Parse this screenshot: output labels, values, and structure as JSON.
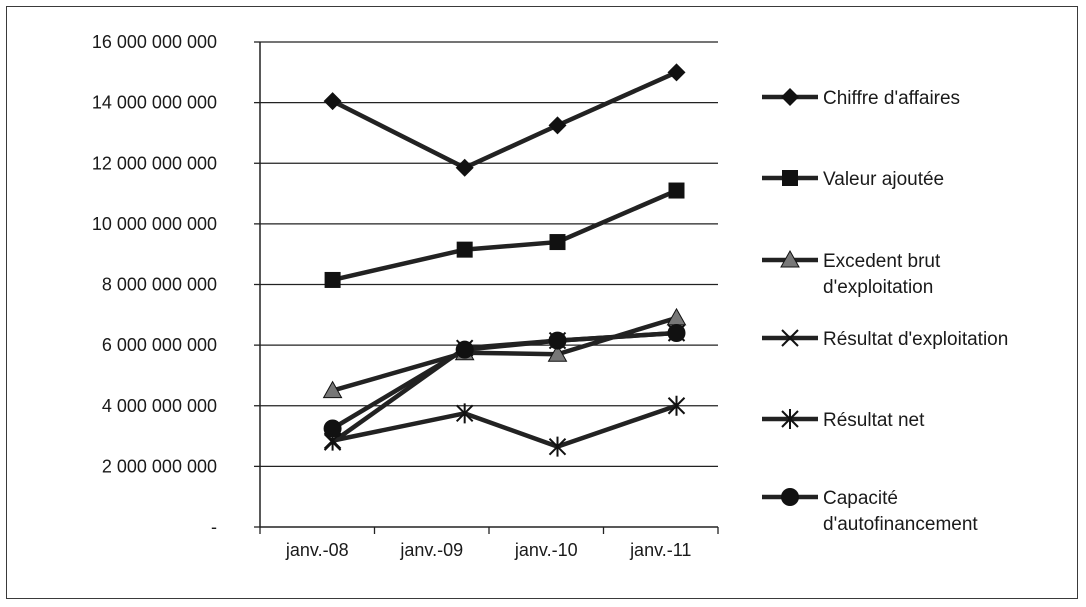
{
  "chart_data": {
    "type": "line",
    "title": "",
    "xlabel": "",
    "ylabel": "",
    "categories": [
      "janv.-08",
      "janv.-09",
      "janv.-10",
      "janv.-11"
    ],
    "x": [
      1,
      2,
      3,
      4
    ],
    "x_offsets": [
      0.11,
      0.22,
      0.0,
      0.0
    ],
    "ylim": [
      0,
      16000000000
    ],
    "y_ticks": [
      {
        "value": 0,
        "label": "-"
      },
      {
        "value": 2000000000,
        "label": "2 000 000 000"
      },
      {
        "value": 4000000000,
        "label": "4 000 000 000"
      },
      {
        "value": 6000000000,
        "label": "6 000 000 000"
      },
      {
        "value": 8000000000,
        "label": "8 000 000 000"
      },
      {
        "value": 10000000000,
        "label": "10 000 000 000"
      },
      {
        "value": 12000000000,
        "label": "12 000 000 000"
      },
      {
        "value": 14000000000,
        "label": "14 000 000 000"
      },
      {
        "value": 16000000000,
        "label": "16 000 000 000"
      }
    ],
    "grid": true,
    "legend_position": "right",
    "series": [
      {
        "name": "Chiffre d'affaires",
        "name_lines": [
          "Chiffre d'affaires"
        ],
        "marker": "diamond",
        "values": [
          14050000000,
          11850000000,
          13250000000,
          15000000000
        ]
      },
      {
        "name": "Valeur ajoutée",
        "name_lines": [
          "Valeur ajoutée"
        ],
        "marker": "square",
        "values": [
          8150000000,
          9150000000,
          9400000000,
          11100000000
        ]
      },
      {
        "name": "Excedent brut d'exploitation",
        "name_lines": [
          "Excedent brut",
          "d'exploitation"
        ],
        "marker": "triangle",
        "values": [
          4500000000,
          5750000000,
          5700000000,
          6900000000
        ]
      },
      {
        "name": "Résultat d'exploitation",
        "name_lines": [
          "Résultat d'exploitation"
        ],
        "marker": "x",
        "values": [
          2800000000,
          5900000000,
          6150000000,
          6400000000
        ]
      },
      {
        "name": "Résultat net",
        "name_lines": [
          "Résultat net"
        ],
        "marker": "star",
        "values": [
          2850000000,
          3750000000,
          2650000000,
          4000000000
        ]
      },
      {
        "name": "Capacité d'autofinancement",
        "name_lines": [
          "Capacité",
          "d'autofinancement"
        ],
        "marker": "circle",
        "values": [
          3250000000,
          5850000000,
          6150000000,
          6400000000
        ]
      }
    ],
    "colors": {
      "line": "#222222",
      "marker": "#111111",
      "triangle_fill": "#777777",
      "grid": "#222222"
    }
  }
}
